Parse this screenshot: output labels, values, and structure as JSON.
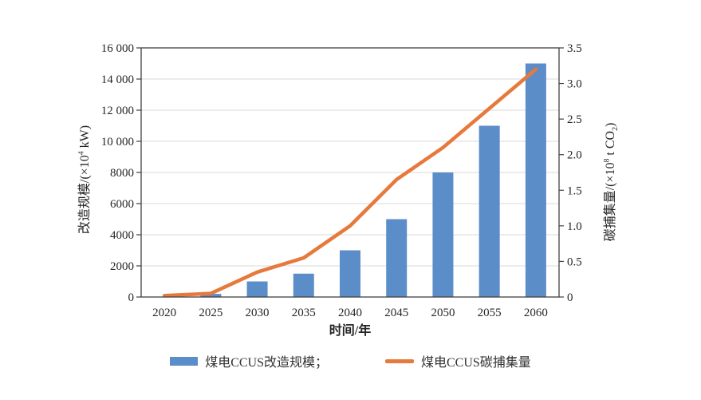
{
  "figure": {
    "x_axis_title": "时间/年",
    "left_axis_title": {
      "prefix": "改造规模/(×10",
      "sup": "4",
      "suffix": " kW)"
    },
    "right_axis_title": {
      "prefix": "碳捕集量/(×10",
      "sup": "8",
      "mid": " t CO",
      "sub": "2",
      "suffix": ")"
    }
  },
  "legend": {
    "bar_label": "煤电CCUS改造规模；",
    "line_label": "煤电CCUS碳捕集量"
  },
  "chart_data": {
    "type": "bar+line combo, dual axis",
    "title": "",
    "xlabel": "时间/年",
    "ylabel_left": "改造规模/(×10⁴ kW)",
    "ylabel_right": "碳捕集量/(×10⁸ t CO₂)",
    "categories": [
      "2020",
      "2025",
      "2030",
      "2035",
      "2040",
      "2045",
      "2050",
      "2055",
      "2060"
    ],
    "series": [
      {
        "name": "煤电CCUS改造规模",
        "type": "bar",
        "axis": "left",
        "color": "#5b8dc8",
        "values": [
          0,
          200,
          1000,
          1500,
          3000,
          5000,
          8000,
          11000,
          15000
        ]
      },
      {
        "name": "煤电CCUS碳捕集量",
        "type": "line",
        "axis": "right",
        "color": "#e6793b",
        "values": [
          0.02,
          0.05,
          0.35,
          0.55,
          1.0,
          1.65,
          2.1,
          2.65,
          3.2
        ]
      }
    ],
    "left_axis": {
      "min": 0,
      "max": 16000,
      "step": 2000,
      "tick_labels": [
        "0",
        "2000",
        "4000",
        "6000",
        "8000",
        "10 000",
        "12 000",
        "14 000",
        "16 000"
      ]
    },
    "right_axis": {
      "min": 0,
      "max": 3.5,
      "step": 0.5,
      "tick_labels": [
        "0",
        "0.5",
        "1.0",
        "1.5",
        "2.0",
        "2.5",
        "3.0",
        "3.5"
      ]
    },
    "grid": "horizontal gridlines at left-axis ticks",
    "legend_position": "bottom-center",
    "colors": {
      "bar": "#5b8dc8",
      "line": "#e6793b",
      "grid": "#d9d9d9",
      "axis": "#404040",
      "text": "#262626",
      "background": "#ffffff"
    }
  }
}
